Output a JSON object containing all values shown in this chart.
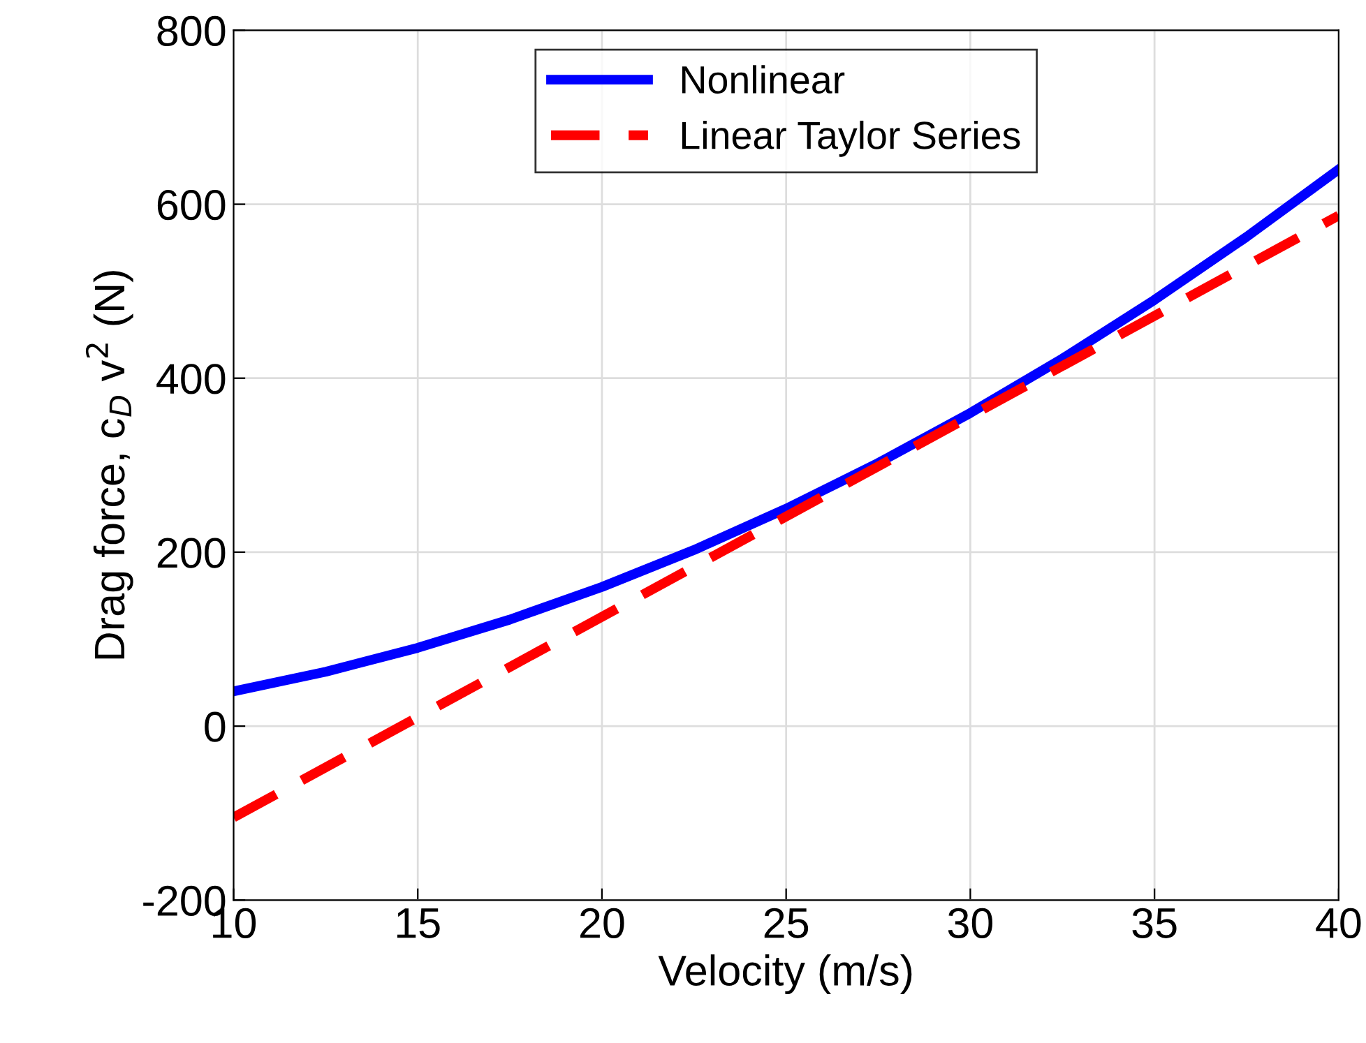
{
  "chart_data": {
    "type": "line",
    "xlabel": "Velocity (m/s)",
    "ylabel": "Drag force, c$_{D}$ v$^{2}$ (N)",
    "x": [
      10,
      12.5,
      15,
      17.5,
      20,
      22.5,
      25,
      27.5,
      30,
      32.5,
      35,
      37.5,
      40
    ],
    "series": [
      {
        "name": "Nonlinear",
        "color": "#0000ff",
        "line_style": "solid",
        "values": [
          40,
          62.5,
          90,
          122.5,
          160,
          202.5,
          250,
          302.5,
          360,
          422.5,
          490,
          562.5,
          640
        ]
      },
      {
        "name": "Linear Taylor Series",
        "color": "#ff0000",
        "line_style": "dashed",
        "x": [
          10,
          40
        ],
        "values": [
          -105,
          587
        ]
      }
    ],
    "xlim": [
      10,
      40
    ],
    "xticks": [
      10,
      15,
      20,
      25,
      30,
      35,
      40
    ],
    "ylim": [
      -200,
      800
    ],
    "yticks": [
      -200,
      0,
      200,
      400,
      600,
      800
    ],
    "grid": true,
    "legend": "top",
    "marker": "none"
  }
}
